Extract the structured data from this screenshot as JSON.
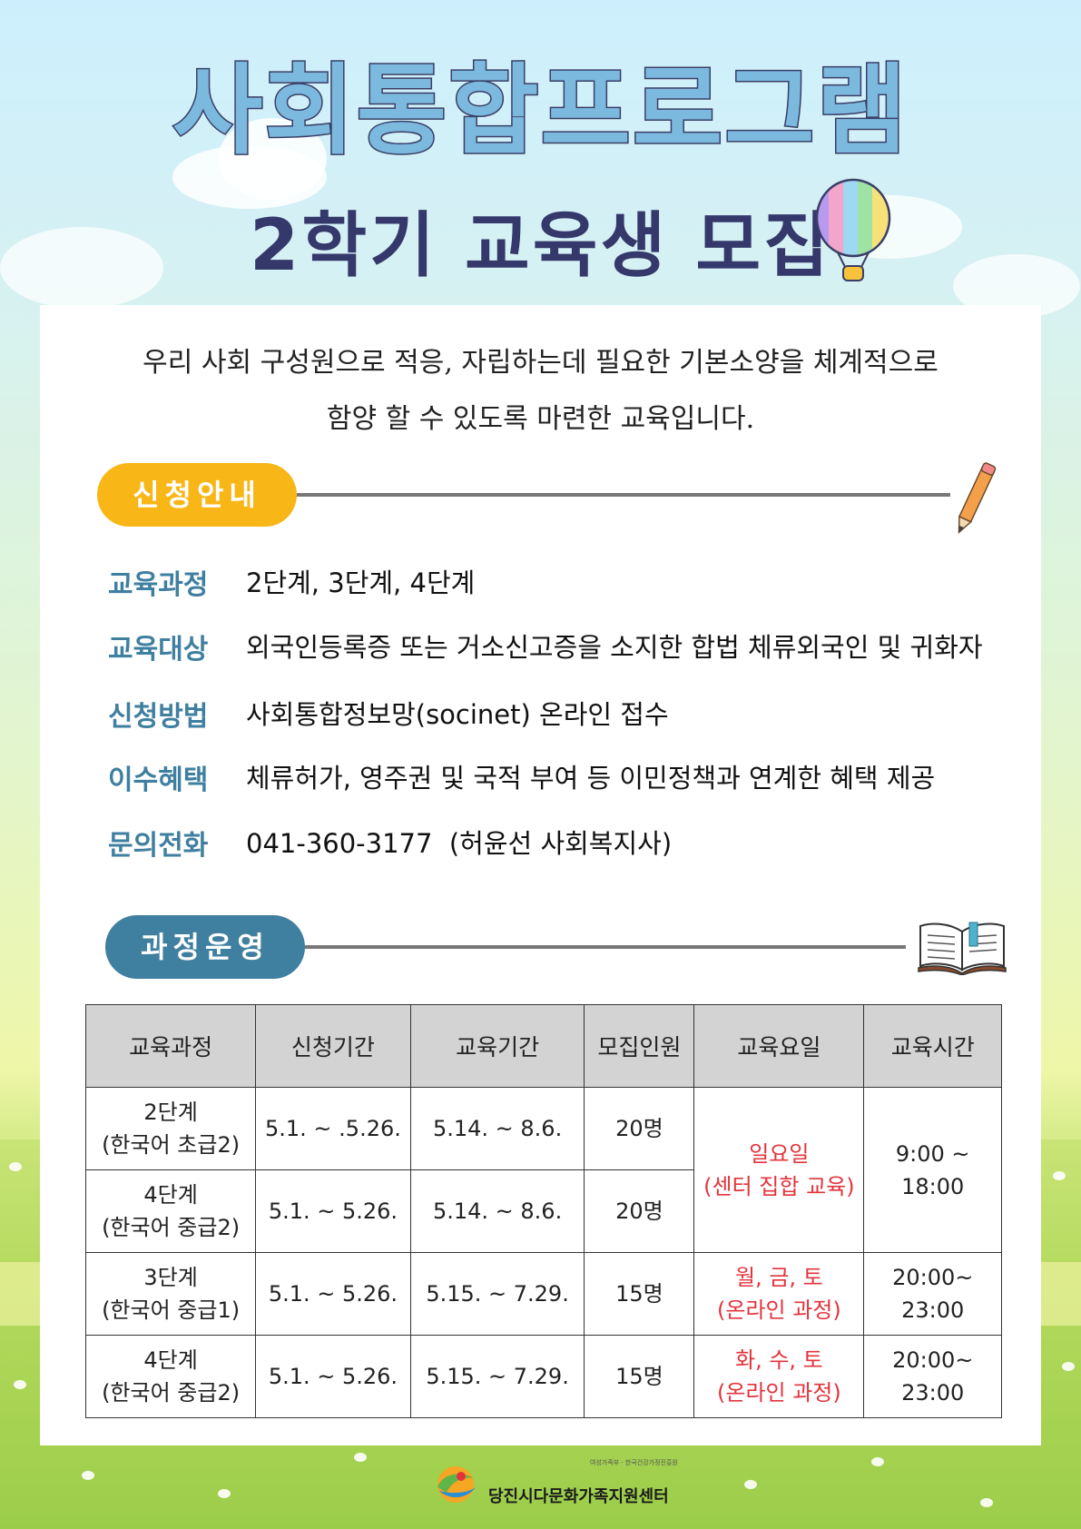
{
  "header": {
    "title": "사회통합프로그램",
    "subtitle": "2학기 교육생 모집"
  },
  "intro": {
    "line1": "우리 사회 구성원으로 적응, 자립하는데 필요한 기본소양을 체계적으로",
    "line2": "함양 할 수 있도록 마련한 교육입니다."
  },
  "apply": {
    "heading": "신청안내",
    "items": [
      {
        "label": "교육과정",
        "value": "2단계, 3단계, 4단계"
      },
      {
        "label": "교육대상",
        "value": "외국인등록증 또는 거소신고증을 소지한 합법 체류외국인 및 귀화자"
      },
      {
        "label": "신청방법",
        "value": "사회통합정보망(socinet) 온라인 접수"
      },
      {
        "label": "이수혜택",
        "value": "체류허가, 영주권 및 국적 부여 등 이민정책과 연계한 혜택 제공"
      },
      {
        "label": "문의전화",
        "value": "041-360-3177  (허윤선 사회복지사)"
      }
    ]
  },
  "course": {
    "heading": "과정운영",
    "columns": [
      "교육과정",
      "신청기간",
      "교육기간",
      "모집인원",
      "교육요일",
      "교육시간"
    ],
    "rows": [
      {
        "level": "2단계",
        "level_sub": "(한국어 초급2)",
        "apply": "5.1. ~ .5.26.",
        "period": "5.14. ~ 8.6.",
        "count": "20명"
      },
      {
        "level": "4단계",
        "level_sub": "(한국어 중급2)",
        "apply": "5.1. ~ 5.26.",
        "period": "5.14. ~ 8.6.",
        "count": "20명"
      },
      {
        "level": "3단계",
        "level_sub": "(한국어 중급1)",
        "apply": "5.1. ~ 5.26.",
        "period": "5.15. ~ 7.29.",
        "count": "15명",
        "days": "월, 금, 토",
        "days_sub": "(온라인 과정)",
        "time": "20:00~",
        "time_sub": "23:00"
      },
      {
        "level": "4단계",
        "level_sub": "(한국어 중급2)",
        "apply": "5.1. ~ 5.26.",
        "period": "5.15. ~ 7.29.",
        "count": "15명",
        "days": "화, 수, 토",
        "days_sub": "(온라인 과정)",
        "time": "20:00~",
        "time_sub": "23:00"
      }
    ],
    "merged": {
      "days": "일요일",
      "days_sub": "(센터 집합 교육)",
      "time": "9:00 ~",
      "time_sub": "18:00"
    }
  },
  "footer": {
    "org": "당진시다문화가족지원센터",
    "tiny": "여성가족부 · 한국건강가정진흥원"
  },
  "colors": {
    "accent_orange": "#f8b617",
    "accent_blue": "#3f7f9f",
    "label_blue": "#3f7fa0",
    "highlight_red": "#e3343d"
  }
}
